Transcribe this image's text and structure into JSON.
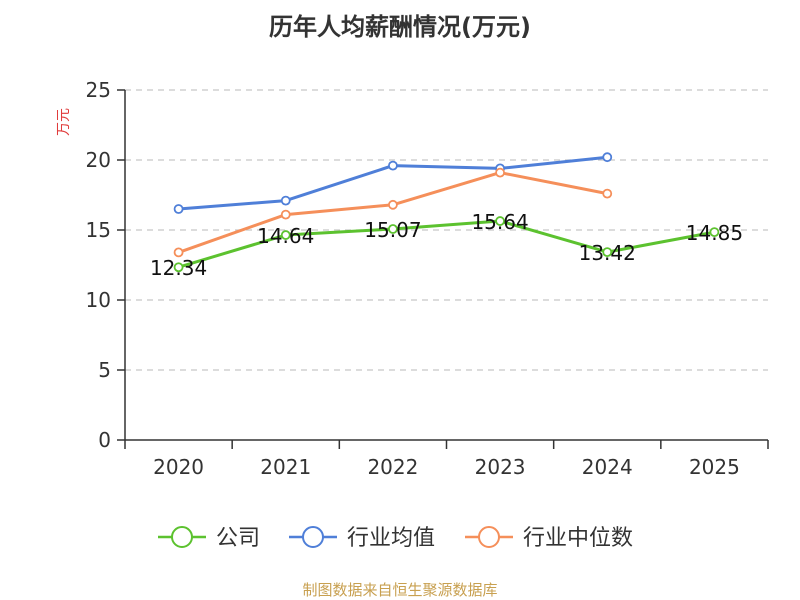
{
  "source_note": "制图数据来自恒生聚源数据库",
  "chart_data": {
    "type": "line",
    "title": "历年人均薪酬情况(万元)",
    "xlabel": "",
    "ylabel": "万元",
    "categories": [
      "2020",
      "2021",
      "2022",
      "2023",
      "2024",
      "2025"
    ],
    "ylim": [
      0,
      25
    ],
    "yticks": [
      0,
      5,
      10,
      15,
      20,
      25
    ],
    "grid": true,
    "legend_position": "bottom",
    "series": [
      {
        "name": "公司",
        "color": "#5cc22f",
        "values": [
          12.34,
          14.64,
          15.07,
          15.64,
          13.42,
          14.85
        ],
        "labels": [
          "12.34",
          "14.64",
          "15.07",
          "15.64",
          "13.42",
          "14.85"
        ]
      },
      {
        "name": "行业均值",
        "color": "#4f7fd8",
        "values": [
          16.5,
          17.1,
          19.6,
          19.4,
          20.2,
          null
        ]
      },
      {
        "name": "行业中位数",
        "color": "#f58f5a",
        "values": [
          13.4,
          16.1,
          16.8,
          19.1,
          17.6,
          null
        ]
      }
    ]
  }
}
